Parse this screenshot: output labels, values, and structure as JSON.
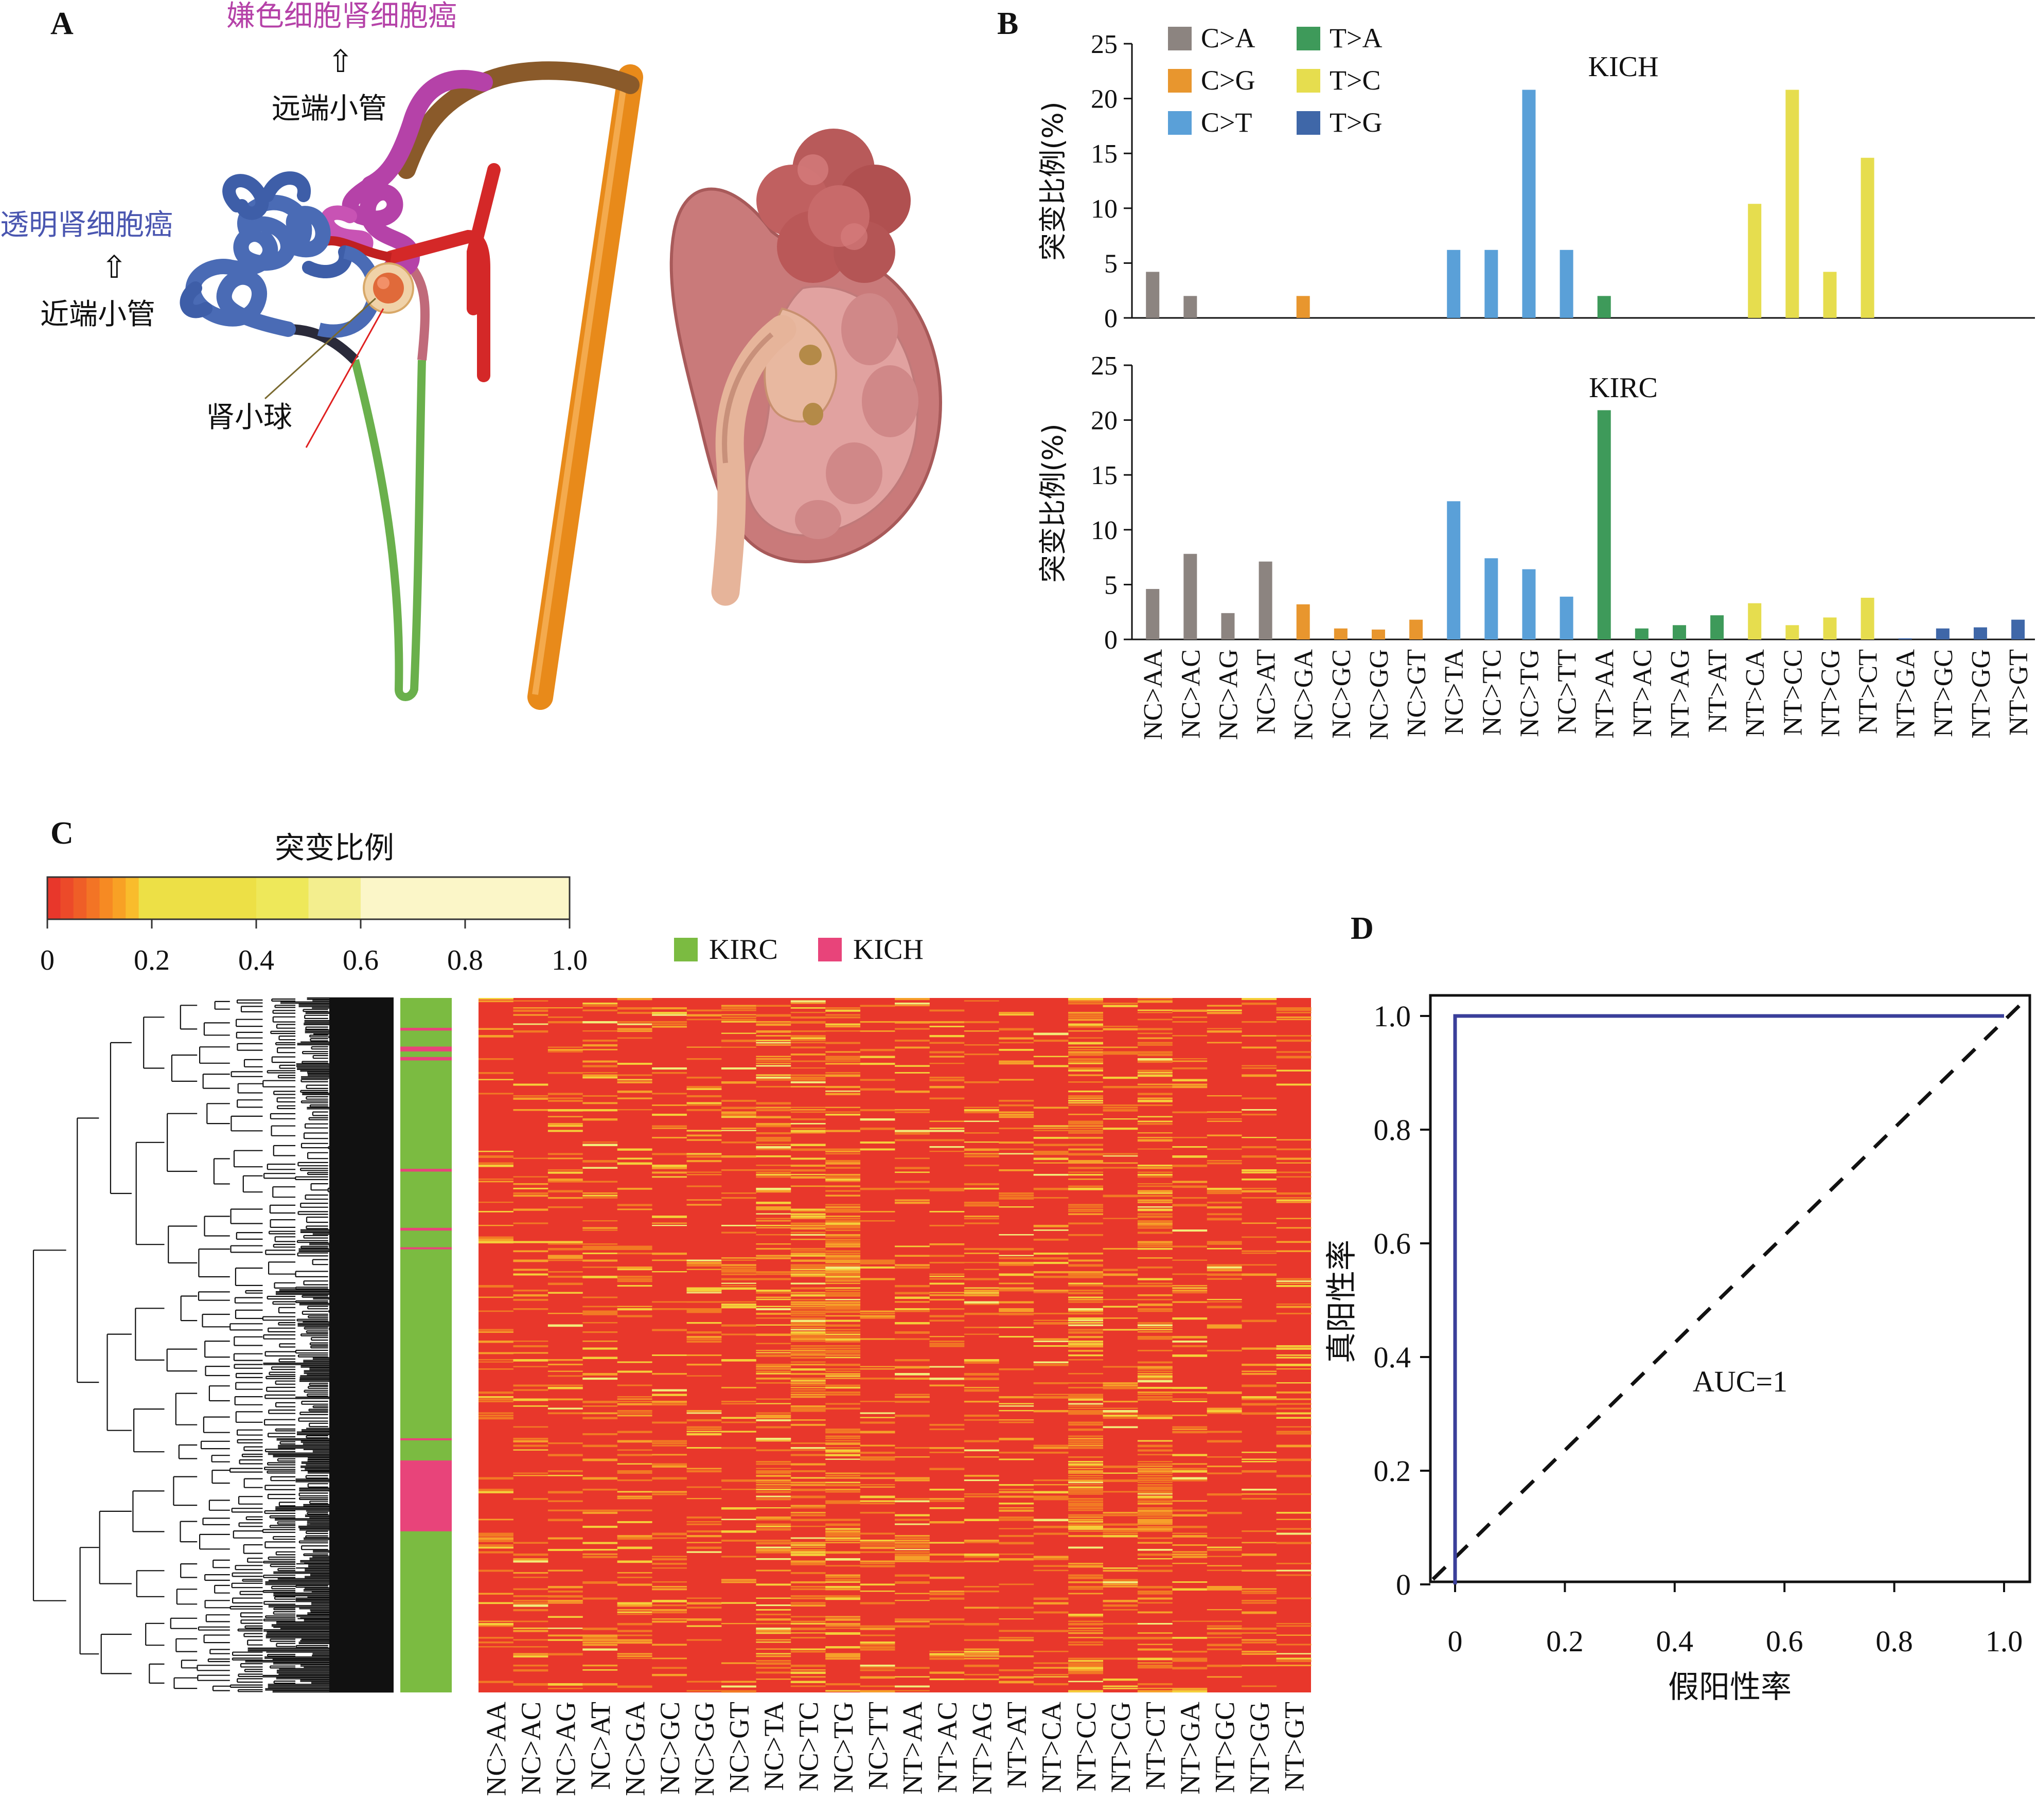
{
  "panel_labels": {
    "a": "A",
    "b": "B",
    "c": "C",
    "d": "D"
  },
  "panel_a": {
    "chrcc_label": "嫌色细胞肾细胞癌",
    "distal_label": "远端小管",
    "ccrcc_label": "透明肾细胞癌",
    "proximal_label": "近端小管",
    "glomerulus_label": "肾小球",
    "arrow_glyph": "⇧",
    "colors": {
      "proximal": "#4a6bb5",
      "distal": "#b542a8",
      "loop": "#6ab04c",
      "artery": "#d42828",
      "duct": "#e88a1a",
      "kidney": "#c97a7a"
    }
  },
  "chart_data": [
    {
      "type": "bar",
      "title": "KICH",
      "ylabel": "突变比例(%)",
      "ylim": [
        0,
        25
      ],
      "yticks": [
        0,
        5,
        10,
        15,
        20,
        25
      ],
      "categories": [
        "NC>AA",
        "NC>AC",
        "NC>AG",
        "NC>AT",
        "NC>GA",
        "NC>GC",
        "NC>GG",
        "NC>GT",
        "NC>TA",
        "NC>TC",
        "NC>TG",
        "NC>TT",
        "NT>AA",
        "NT>AC",
        "NT>AG",
        "NT>AT",
        "NT>CA",
        "NT>CC",
        "NT>CG",
        "NT>CT",
        "NT>GA",
        "NT>GC",
        "NT>GG",
        "NT>GT"
      ],
      "values": [
        4.2,
        2.0,
        0,
        0,
        2.0,
        0,
        0,
        0,
        6.2,
        6.2,
        20.8,
        6.2,
        2.0,
        0,
        0,
        0,
        10.4,
        20.8,
        4.2,
        14.6,
        0,
        0,
        0,
        0
      ],
      "group_of_category": [
        "C>A",
        "C>A",
        "C>A",
        "C>A",
        "C>G",
        "C>G",
        "C>G",
        "C>G",
        "C>T",
        "C>T",
        "C>T",
        "C>T",
        "T>A",
        "T>A",
        "T>A",
        "T>A",
        "T>C",
        "T>C",
        "T>C",
        "T>C",
        "T>G",
        "T>G",
        "T>G",
        "T>G"
      ],
      "legend": [
        {
          "label": "C>A",
          "color": "#8c8480"
        },
        {
          "label": "C>G",
          "color": "#e8962e"
        },
        {
          "label": "C>T",
          "color": "#5aa0d8"
        },
        {
          "label": "T>A",
          "color": "#3e9a5a"
        },
        {
          "label": "T>C",
          "color": "#e6dd4e"
        },
        {
          "label": "T>G",
          "color": "#3f67a8"
        }
      ]
    },
    {
      "type": "bar",
      "title": "KIRC",
      "ylabel": "突变比例(%)",
      "ylim": [
        0,
        25
      ],
      "yticks": [
        0,
        5,
        10,
        15,
        20,
        25
      ],
      "categories": [
        "NC>AA",
        "NC>AC",
        "NC>AG",
        "NC>AT",
        "NC>GA",
        "NC>GC",
        "NC>GG",
        "NC>GT",
        "NC>TA",
        "NC>TC",
        "NC>TG",
        "NC>TT",
        "NT>AA",
        "NT>AC",
        "NT>AG",
        "NT>AT",
        "NT>CA",
        "NT>CC",
        "NT>CG",
        "NT>CT",
        "NT>GA",
        "NT>GC",
        "NT>GG",
        "NT>GT"
      ],
      "values": [
        4.6,
        7.8,
        2.4,
        7.1,
        3.2,
        1.0,
        0.9,
        1.8,
        12.6,
        7.4,
        6.4,
        3.9,
        20.9,
        1.0,
        1.3,
        2.2,
        3.3,
        1.3,
        2.0,
        3.8,
        0.1,
        1.0,
        1.1,
        1.8
      ]
    },
    {
      "type": "heatmap",
      "colorbar_title": "突变比例",
      "colorbar_ticks": [
        "0",
        "0.2",
        "0.4",
        "0.6",
        "0.8",
        "1.0"
      ],
      "colorbar_stops": [
        "#e8372b",
        "#ec4a29",
        "#ef5e27",
        "#f37425",
        "#f68a23",
        "#f8a125",
        "#f9bc2c",
        "#ede046",
        "#eee85a",
        "#f3ee8e",
        "#fbf6c8"
      ],
      "legend": [
        {
          "label": "KIRC",
          "color": "#7bbb41"
        },
        {
          "label": "KICH",
          "color": "#e8447a"
        }
      ],
      "columns": [
        "NC>AA",
        "NC>AC",
        "NC>AG",
        "NC>AT",
        "NC>GA",
        "NC>GC",
        "NC>GG",
        "NC>GT",
        "NC>TA",
        "NC>TC",
        "NC>TG",
        "NC>TT",
        "NT>AA",
        "NT>AC",
        "NT>AG",
        "NT>AT",
        "NT>CA",
        "NT>CC",
        "NT>CG",
        "NT>CT",
        "NT>GA",
        "NT>GC",
        "NT>GG",
        "NT>GT"
      ],
      "kich_row_fraction_blocks": [
        [
          0.043,
          0.047
        ],
        [
          0.07,
          0.077
        ],
        [
          0.085,
          0.09
        ],
        [
          0.246,
          0.25
        ],
        [
          0.331,
          0.335
        ],
        [
          0.359,
          0.362
        ],
        [
          0.634,
          0.637
        ],
        [
          0.666,
          0.768
        ]
      ],
      "hot_columns": [
        "NC>TA",
        "NC>TC",
        "NC>TG",
        "NT>CC",
        "NT>CT"
      ]
    },
    {
      "type": "line",
      "ylabel": "真阳性率",
      "xlabel": "假阳性率",
      "xlim": [
        0,
        1
      ],
      "ylim": [
        0,
        1
      ],
      "xticks": [
        "0",
        "0.2",
        "0.4",
        "0.6",
        "0.8",
        "1.0"
      ],
      "yticks": [
        "0",
        "0.2",
        "0.4",
        "0.6",
        "0.8",
        "1.0"
      ],
      "series": [
        {
          "x": [
            0,
            0,
            1
          ],
          "y": [
            0,
            1,
            1
          ],
          "color": "#3a3f9a"
        }
      ],
      "diagonal": true,
      "annotation": "AUC=1"
    }
  ]
}
